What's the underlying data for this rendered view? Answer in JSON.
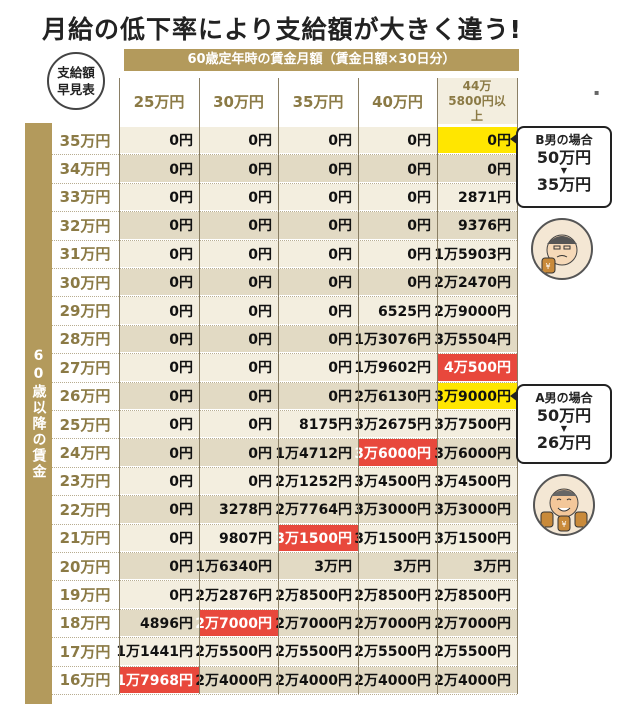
{
  "title": "月給の低下率により支給額が大きく違う!",
  "banner": "60歳定年時の賃金月額（賃金日額×30日分）",
  "badge": [
    "支給額",
    "早見表"
  ],
  "side_label": "60歳以降の賃金",
  "columns": [
    "25万円",
    "30万円",
    "35万円",
    "40万円",
    "44万5800円以上"
  ],
  "rows": [
    {
      "label": "35万円",
      "cells": [
        "0円",
        "0円",
        "0円",
        "0円",
        "0円"
      ]
    },
    {
      "label": "34万円",
      "cells": [
        "0円",
        "0円",
        "0円",
        "0円",
        "0円"
      ]
    },
    {
      "label": "33万円",
      "cells": [
        "0円",
        "0円",
        "0円",
        "0円",
        "2871円"
      ]
    },
    {
      "label": "32万円",
      "cells": [
        "0円",
        "0円",
        "0円",
        "0円",
        "9376円"
      ]
    },
    {
      "label": "31万円",
      "cells": [
        "0円",
        "0円",
        "0円",
        "0円",
        "1万5903円"
      ]
    },
    {
      "label": "30万円",
      "cells": [
        "0円",
        "0円",
        "0円",
        "0円",
        "2万2470円"
      ]
    },
    {
      "label": "29万円",
      "cells": [
        "0円",
        "0円",
        "0円",
        "6525円",
        "2万9000円"
      ]
    },
    {
      "label": "28万円",
      "cells": [
        "0円",
        "0円",
        "0円",
        "1万3076円",
        "3万5504円"
      ]
    },
    {
      "label": "27万円",
      "cells": [
        "0円",
        "0円",
        "0円",
        "1万9602円",
        "4万500円"
      ]
    },
    {
      "label": "26万円",
      "cells": [
        "0円",
        "0円",
        "0円",
        "2万6130円",
        "3万9000円"
      ]
    },
    {
      "label": "25万円",
      "cells": [
        "0円",
        "0円",
        "8175円",
        "3万2675円",
        "3万7500円"
      ]
    },
    {
      "label": "24万円",
      "cells": [
        "0円",
        "0円",
        "1万4712円",
        "3万6000円",
        "3万6000円"
      ]
    },
    {
      "label": "23万円",
      "cells": [
        "0円",
        "0円",
        "2万1252円",
        "3万4500円",
        "3万4500円"
      ]
    },
    {
      "label": "22万円",
      "cells": [
        "0円",
        "3278円",
        "2万7764円",
        "3万3000円",
        "3万3000円"
      ]
    },
    {
      "label": "21万円",
      "cells": [
        "0円",
        "9807円",
        "3万1500円",
        "3万1500円",
        "3万1500円"
      ]
    },
    {
      "label": "20万円",
      "cells": [
        "0円",
        "1万6340円",
        "3万円",
        "3万円",
        "3万円"
      ]
    },
    {
      "label": "19万円",
      "cells": [
        "0円",
        "2万2876円",
        "2万8500円",
        "2万8500円",
        "2万8500円"
      ]
    },
    {
      "label": "18万円",
      "cells": [
        "4896円",
        "2万7000円",
        "2万7000円",
        "2万7000円",
        "2万7000円"
      ]
    },
    {
      "label": "17万円",
      "cells": [
        "1万1441円",
        "2万5500円",
        "2万5500円",
        "2万5500円",
        "2万5500円"
      ]
    },
    {
      "label": "16万円",
      "cells": [
        "1万7968円",
        "2万4000円",
        "2万4000円",
        "2万4000円",
        "2万4000円"
      ]
    }
  ],
  "highlights": {
    "red": [
      [
        8,
        4
      ],
      [
        11,
        3
      ],
      [
        14,
        2
      ],
      [
        17,
        1
      ],
      [
        19,
        0
      ]
    ],
    "yellow": [
      [
        0,
        4
      ],
      [
        9,
        4
      ]
    ]
  },
  "callouts": [
    {
      "header": "B男の場合",
      "from": "50万円",
      "arrow": "▼",
      "to": "35万円"
    },
    {
      "header": "A男の場合",
      "from": "50万円",
      "arrow": "▼",
      "to": "26万円"
    }
  ],
  "colors": {
    "gold": "#b39a5c",
    "goldText": "#8b7a45",
    "cellLight": "#f3eedf",
    "cellDark": "#e2dac4",
    "red": "#e8483c",
    "yellow": "#ffe600"
  }
}
